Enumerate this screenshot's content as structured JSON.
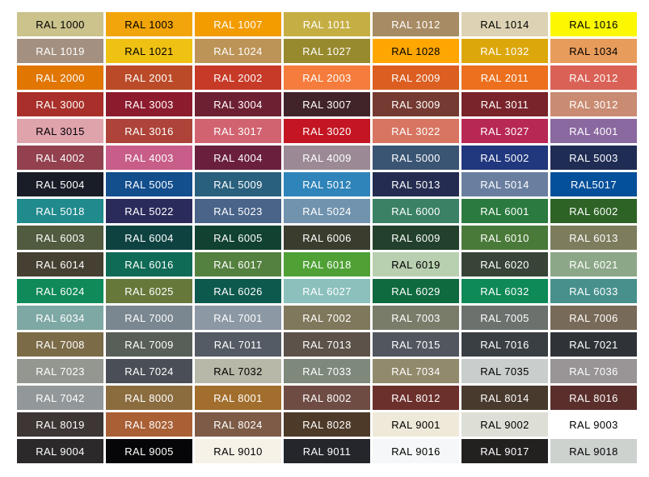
{
  "page": {
    "background": "#FFFFFF"
  },
  "chart_data": {
    "type": "table",
    "columns": 7,
    "row_count": 17,
    "rows": [
      {
        "cells": [
          {
            "label": "RAL 1000",
            "hex": "#CBC28C",
            "label_color": "#000000"
          },
          {
            "label": "RAL 1003",
            "hex": "#F2A50A",
            "label_color": "#000000"
          },
          {
            "label": "RAL 1007",
            "hex": "#F39C00",
            "label_color": "#FFFFFF"
          },
          {
            "label": "RAL 1011",
            "hex": "#C5AF45",
            "label_color": "#FFFFFF"
          },
          {
            "label": "RAL 1012",
            "hex": "#A78B64",
            "label_color": "#FFFFFF"
          },
          {
            "label": "RAL 1014",
            "hex": "#DDD3B4",
            "label_color": "#000000"
          },
          {
            "label": "RAL 1016",
            "hex": "#FBF802",
            "label_color": "#000000"
          }
        ]
      },
      {
        "cells": [
          {
            "label": "RAL 1019",
            "hex": "#A49080",
            "label_color": "#FFFFFF"
          },
          {
            "label": "RAL 1021",
            "hex": "#EFC113",
            "label_color": "#000000"
          },
          {
            "label": "RAL 1024",
            "hex": "#BC9457",
            "label_color": "#FFFFFF"
          },
          {
            "label": "RAL 1027",
            "hex": "#978A2E",
            "label_color": "#FFFFFF"
          },
          {
            "label": "RAL 1028",
            "hex": "#FFA602",
            "label_color": "#000000"
          },
          {
            "label": "RAL 1032",
            "hex": "#DCA70A",
            "label_color": "#FFFFFF"
          },
          {
            "label": "RAL 1034",
            "hex": "#E89C5B",
            "label_color": "#000000"
          }
        ]
      },
      {
        "cells": [
          {
            "label": "RAL 2000",
            "hex": "#E17600",
            "label_color": "#FFFFFF"
          },
          {
            "label": "RAL 2001",
            "hex": "#BB4B28",
            "label_color": "#FFFFFF"
          },
          {
            "label": "RAL 2002",
            "hex": "#C73A27",
            "label_color": "#FFFFFF"
          },
          {
            "label": "RAL 2003",
            "hex": "#F57C3C",
            "label_color": "#FFFFFF"
          },
          {
            "label": "RAL 2009",
            "hex": "#DC5E20",
            "label_color": "#FFFFFF"
          },
          {
            "label": "RAL 2011",
            "hex": "#EC701E",
            "label_color": "#FFFFFF"
          },
          {
            "label": "RAL 2012",
            "hex": "#DA6156",
            "label_color": "#FFFFFF"
          }
        ]
      },
      {
        "cells": [
          {
            "label": "RAL 3000",
            "hex": "#A9302A",
            "label_color": "#FFFFFF"
          },
          {
            "label": "RAL 3003",
            "hex": "#8D1B2E",
            "label_color": "#FFFFFF"
          },
          {
            "label": "RAL 3004",
            "hex": "#6E2033",
            "label_color": "#FFFFFF"
          },
          {
            "label": "RAL 3007",
            "hex": "#402429",
            "label_color": "#FFFFFF"
          },
          {
            "label": "RAL 3009",
            "hex": "#753A31",
            "label_color": "#FFFFFF"
          },
          {
            "label": "RAL 3011",
            "hex": "#78242A",
            "label_color": "#FFFFFF"
          },
          {
            "label": "RAL 3012",
            "hex": "#C98B72",
            "label_color": "#FFFFFF"
          }
        ]
      },
      {
        "cells": [
          {
            "label": "RAL 3015",
            "hex": "#DFA3AC",
            "label_color": "#000000"
          },
          {
            "label": "RAL 3016",
            "hex": "#AD4339",
            "label_color": "#FFFFFF"
          },
          {
            "label": "RAL 3017",
            "hex": "#D16370",
            "label_color": "#FFFFFF"
          },
          {
            "label": "RAL 3020",
            "hex": "#C31622",
            "label_color": "#FFFFFF"
          },
          {
            "label": "RAL 3022",
            "hex": "#D77562",
            "label_color": "#FFFFFF"
          },
          {
            "label": "RAL 3027",
            "hex": "#B82855",
            "label_color": "#FFFFFF"
          },
          {
            "label": "RAL 4001",
            "hex": "#8A68A0",
            "label_color": "#FFFFFF"
          }
        ]
      },
      {
        "cells": [
          {
            "label": "RAL 4002",
            "hex": "#93414F",
            "label_color": "#FFFFFF"
          },
          {
            "label": "RAL 4003",
            "hex": "#C75D88",
            "label_color": "#FFFFFF"
          },
          {
            "label": "RAL 4004",
            "hex": "#6A1F3D",
            "label_color": "#FFFFFF"
          },
          {
            "label": "RAL 4009",
            "hex": "#9B8A96",
            "label_color": "#FFFFFF"
          },
          {
            "label": "RAL 5000",
            "hex": "#3A5573",
            "label_color": "#FFFFFF"
          },
          {
            "label": "RAL 5002",
            "hex": "#21377E",
            "label_color": "#FFFFFF"
          },
          {
            "label": "RAL 5003",
            "hex": "#1F2D54",
            "label_color": "#FFFFFF"
          }
        ]
      },
      {
        "cells": [
          {
            "label": "RAL 5004",
            "hex": "#191D27",
            "label_color": "#FFFFFF"
          },
          {
            "label": "RAL 5005",
            "hex": "#134E8D",
            "label_color": "#FFFFFF"
          },
          {
            "label": "RAL 5009",
            "hex": "#29607E",
            "label_color": "#FFFFFF"
          },
          {
            "label": "RAL 5012",
            "hex": "#2F84B9",
            "label_color": "#FFFFFF"
          },
          {
            "label": "RAL 5013",
            "hex": "#242D51",
            "label_color": "#FFFFFF"
          },
          {
            "label": "RAL 5014",
            "hex": "#6A7FA0",
            "label_color": "#FFFFFF"
          },
          {
            "label": "RAL5017",
            "hex": "#04509A",
            "label_color": "#FFFFFF"
          }
        ]
      },
      {
        "cells": [
          {
            "label": "RAL 5018",
            "hex": "#208A8C",
            "label_color": "#FFFFFF"
          },
          {
            "label": "RAL 5022",
            "hex": "#2A2B5B",
            "label_color": "#FFFFFF"
          },
          {
            "label": "RAL 5023",
            "hex": "#496389",
            "label_color": "#FFFFFF"
          },
          {
            "label": "RAL 5024",
            "hex": "#7193AE",
            "label_color": "#FFFFFF"
          },
          {
            "label": "RAL 6000",
            "hex": "#3A8166",
            "label_color": "#FFFFFF"
          },
          {
            "label": "RAL 6001",
            "hex": "#2B7A3F",
            "label_color": "#FFFFFF"
          },
          {
            "label": "RAL 6002",
            "hex": "#2D6325",
            "label_color": "#FFFFFF"
          }
        ]
      },
      {
        "cells": [
          {
            "label": "RAL 6003",
            "hex": "#505B3F",
            "label_color": "#FFFFFF"
          },
          {
            "label": "RAL 6004",
            "hex": "#0E4241",
            "label_color": "#FFFFFF"
          },
          {
            "label": "RAL 6005",
            "hex": "#114231",
            "label_color": "#FFFFFF"
          },
          {
            "label": "RAL 6006",
            "hex": "#3A3D2E",
            "label_color": "#FFFFFF"
          },
          {
            "label": "RAL 6009",
            "hex": "#22402B",
            "label_color": "#FFFFFF"
          },
          {
            "label": "RAL 6010",
            "hex": "#4A7A39",
            "label_color": "#FFFFFF"
          },
          {
            "label": "RAL 6013",
            "hex": "#7D7C5D",
            "label_color": "#FFFFFF"
          }
        ]
      },
      {
        "cells": [
          {
            "label": "RAL 6014",
            "hex": "#454031",
            "label_color": "#FFFFFF"
          },
          {
            "label": "RAL 6016",
            "hex": "#0F6B55",
            "label_color": "#FFFFFF"
          },
          {
            "label": "RAL 6017",
            "hex": "#54813F",
            "label_color": "#FFFFFF"
          },
          {
            "label": "RAL 6018",
            "hex": "#4FA135",
            "label_color": "#FFFFFF"
          },
          {
            "label": "RAL 6019",
            "hex": "#B8CFB0",
            "label_color": "#000000"
          },
          {
            "label": "RAL 6020",
            "hex": "#384438",
            "label_color": "#FFFFFF"
          },
          {
            "label": "RAL 6021",
            "hex": "#8CA787",
            "label_color": "#FFFFFF"
          }
        ]
      },
      {
        "cells": [
          {
            "label": "RAL 6024",
            "hex": "#0F8A58",
            "label_color": "#FFFFFF"
          },
          {
            "label": "RAL 6025",
            "hex": "#66793B",
            "label_color": "#FFFFFF"
          },
          {
            "label": "RAL 6026",
            "hex": "#0E594E",
            "label_color": "#FFFFFF"
          },
          {
            "label": "RAL 6027",
            "hex": "#8BC0BC",
            "label_color": "#FFFFFF"
          },
          {
            "label": "RAL 6029",
            "hex": "#0F6A3F",
            "label_color": "#FFFFFF"
          },
          {
            "label": "RAL 6032",
            "hex": "#0D8A56",
            "label_color": "#FFFFFF"
          },
          {
            "label": "RAL 6033",
            "hex": "#47908C",
            "label_color": "#FFFFFF"
          }
        ]
      },
      {
        "cells": [
          {
            "label": "RAL 6034",
            "hex": "#7EA8A4",
            "label_color": "#FFFFFF"
          },
          {
            "label": "RAL 7000",
            "hex": "#7A8790",
            "label_color": "#FFFFFF"
          },
          {
            "label": "RAL 7001",
            "hex": "#8C98A4",
            "label_color": "#FFFFFF"
          },
          {
            "label": "RAL 7002",
            "hex": "#80785C",
            "label_color": "#FFFFFF"
          },
          {
            "label": "RAL 7003",
            "hex": "#797C69",
            "label_color": "#FFFFFF"
          },
          {
            "label": "RAL 7005",
            "hex": "#6C716E",
            "label_color": "#FFFFFF"
          },
          {
            "label": "RAL 7006",
            "hex": "#786A58",
            "label_color": "#FFFFFF"
          }
        ]
      },
      {
        "cells": [
          {
            "label": "RAL 7008",
            "hex": "#7B6B47",
            "label_color": "#FFFFFF"
          },
          {
            "label": "RAL 7009",
            "hex": "#585F58",
            "label_color": "#FFFFFF"
          },
          {
            "label": "RAL 7011",
            "hex": "#545B64",
            "label_color": "#FFFFFF"
          },
          {
            "label": "RAL 7013",
            "hex": "#5C524A",
            "label_color": "#FFFFFF"
          },
          {
            "label": "RAL 7015",
            "hex": "#51565F",
            "label_color": "#FFFFFF"
          },
          {
            "label": "RAL 7016",
            "hex": "#3A3F44",
            "label_color": "#FFFFFF"
          },
          {
            "label": "RAL 7021",
            "hex": "#2F3338",
            "label_color": "#FFFFFF"
          }
        ]
      },
      {
        "cells": [
          {
            "label": "RAL 7023",
            "hex": "#939790",
            "label_color": "#FFFFFF"
          },
          {
            "label": "RAL 7024",
            "hex": "#494E57",
            "label_color": "#FFFFFF"
          },
          {
            "label": "RAL 7032",
            "hex": "#B7B8A8",
            "label_color": "#000000"
          },
          {
            "label": "RAL 7033",
            "hex": "#7E897B",
            "label_color": "#FFFFFF"
          },
          {
            "label": "RAL 7034",
            "hex": "#928A6D",
            "label_color": "#FFFFFF"
          },
          {
            "label": "RAL 7035",
            "hex": "#C9CECD",
            "label_color": "#000000"
          },
          {
            "label": "RAL 7036",
            "hex": "#999495",
            "label_color": "#FFFFFF"
          }
        ]
      },
      {
        "cells": [
          {
            "label": "RAL 7042",
            "hex": "#929899",
            "label_color": "#FFFFFF"
          },
          {
            "label": "RAL 8000",
            "hex": "#8B6C3F",
            "label_color": "#FFFFFF"
          },
          {
            "label": "RAL 8001",
            "hex": "#A26E2D",
            "label_color": "#FFFFFF"
          },
          {
            "label": "RAL 8002",
            "hex": "#6E4C44",
            "label_color": "#FFFFFF"
          },
          {
            "label": "RAL 8012",
            "hex": "#6C302C",
            "label_color": "#FFFFFF"
          },
          {
            "label": "RAL 8014",
            "hex": "#483A2D",
            "label_color": "#FFFFFF"
          },
          {
            "label": "RAL 8016",
            "hex": "#5A2F2B",
            "label_color": "#FFFFFF"
          }
        ]
      },
      {
        "cells": [
          {
            "label": "RAL 8019",
            "hex": "#3D3635",
            "label_color": "#FFFFFF"
          },
          {
            "label": "RAL 8023",
            "hex": "#A96035",
            "label_color": "#FFFFFF"
          },
          {
            "label": "RAL 8024",
            "hex": "#7D5B46",
            "label_color": "#FFFFFF"
          },
          {
            "label": "RAL 8028",
            "hex": "#4D3A28",
            "label_color": "#FFFFFF"
          },
          {
            "label": "RAL 9001",
            "hex": "#EFE9D9",
            "label_color": "#000000"
          },
          {
            "label": "RAL 9002",
            "hex": "#DDDED6",
            "label_color": "#000000"
          },
          {
            "label": "RAL 9003",
            "hex": "#FFFFFF",
            "label_color": "#000000"
          }
        ]
      },
      {
        "cells": [
          {
            "label": "RAL 9004",
            "hex": "#2B292A",
            "label_color": "#FFFFFF"
          },
          {
            "label": "RAL 9005",
            "hex": "#060608",
            "label_color": "#FFFFFF"
          },
          {
            "label": "RAL 9010",
            "hex": "#F6F2E7",
            "label_color": "#000000"
          },
          {
            "label": "RAL 9011",
            "hex": "#24262C",
            "label_color": "#FFFFFF"
          },
          {
            "label": "RAL 9016",
            "hex": "#F5F7F8",
            "label_color": "#000000"
          },
          {
            "label": "RAL 9017",
            "hex": "#232020",
            "label_color": "#FFFFFF"
          },
          {
            "label": "RAL 9018",
            "hex": "#CDD2CF",
            "label_color": "#000000"
          }
        ]
      }
    ]
  }
}
